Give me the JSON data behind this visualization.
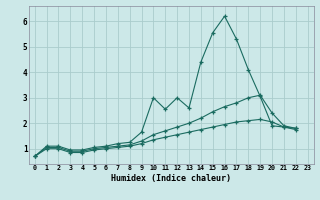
{
  "xlabel": "Humidex (Indice chaleur)",
  "background_color": "#cce8e8",
  "grid_color": "#aacccc",
  "line_color": "#1a6b60",
  "xlim": [
    -0.5,
    23.5
  ],
  "ylim": [
    0.4,
    6.6
  ],
  "series": [
    [
      0.7,
      1.1,
      1.1,
      0.95,
      0.95,
      1.05,
      1.1,
      1.2,
      1.25,
      1.65,
      3.0,
      2.55,
      3.0,
      2.6,
      4.4,
      5.55,
      6.2,
      5.3,
      4.1,
      3.05,
      1.9,
      1.85,
      1.8
    ],
    [
      0.7,
      1.05,
      1.05,
      0.9,
      0.9,
      1.0,
      1.05,
      1.1,
      1.15,
      1.3,
      1.55,
      1.7,
      1.85,
      2.0,
      2.2,
      2.45,
      2.65,
      2.8,
      3.0,
      3.1,
      2.4,
      1.9,
      1.8
    ],
    [
      0.7,
      1.0,
      1.0,
      0.85,
      0.85,
      0.95,
      1.0,
      1.05,
      1.1,
      1.2,
      1.35,
      1.45,
      1.55,
      1.65,
      1.75,
      1.85,
      1.95,
      2.05,
      2.1,
      2.15,
      2.05,
      1.85,
      1.75
    ]
  ],
  "xtick_values": [
    0,
    1,
    2,
    3,
    4,
    5,
    6,
    7,
    8,
    9,
    10,
    11,
    12,
    13,
    14,
    15,
    16,
    17,
    18,
    19,
    20,
    21,
    22,
    23
  ],
  "ytick_values": [
    1,
    2,
    3,
    4,
    5,
    6
  ]
}
